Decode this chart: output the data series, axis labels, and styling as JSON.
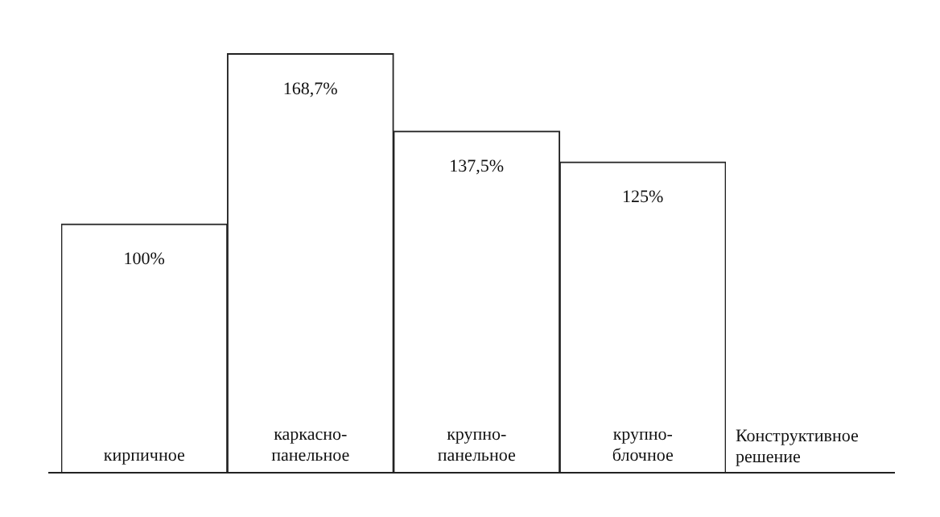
{
  "chart_data": {
    "type": "bar",
    "categories": [
      "кирпичное",
      "каркасно-панельное",
      "крупно-панельное",
      "крупно-блочное"
    ],
    "values": [
      100,
      168.7,
      137.5,
      125
    ],
    "value_labels": [
      "100%",
      "168,7%",
      "137,5%",
      "125%"
    ],
    "color": "#ffffff",
    "xlabel": "Конструктивное решение"
  }
}
